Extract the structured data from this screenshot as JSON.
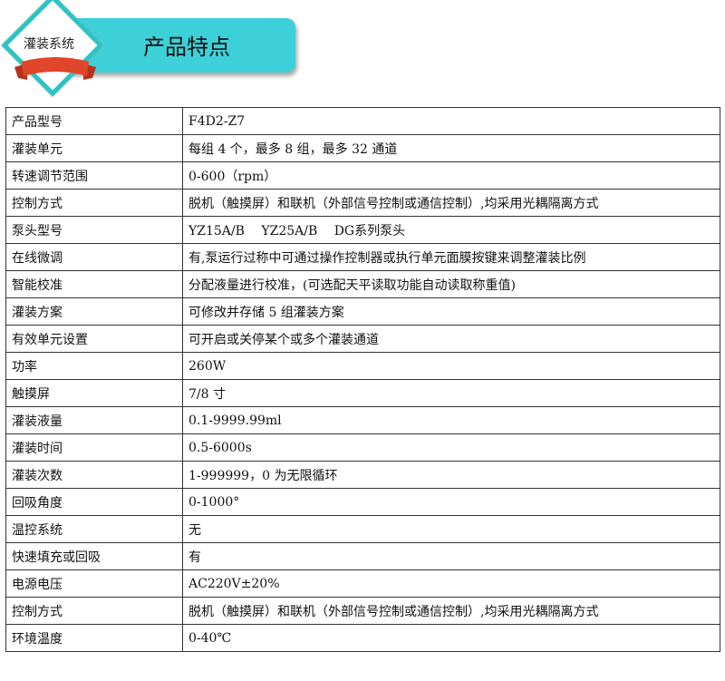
{
  "header": {
    "badge": "灌装系统",
    "title": "产品特点",
    "accent": "#3dd0d8",
    "ribbon": "#e0462a"
  },
  "specs": [
    {
      "k": "产品型号",
      "v": "F4D2-Z7"
    },
    {
      "k": "灌装单元",
      "v": "每组 4 个，最多 8 组，最多 32 通道"
    },
    {
      "k": "转速调节范围",
      "v": "0-600（rpm）"
    },
    {
      "k": "控制方式",
      "v": "脱机（触摸屏）和联机（外部信号控制或通信控制）,均采用光耦隔离方式"
    },
    {
      "k": "泵头型号",
      "v": "YZ15A/B　 YZ25A/B　 DG系列泵头"
    },
    {
      "k": "在线微调",
      "v": "有,泵运行过称中可通过操作控制器或执行单元面膜按键来调整灌装比例"
    },
    {
      "k": "智能校准",
      "v": "分配液量进行校准，(可选配天平读取功能自动读取称重值)"
    },
    {
      "k": "灌装方案",
      "v": "可修改并存储 5 组灌装方案"
    },
    {
      "k": "有效单元设置",
      "v": "可开启或关停某个或多个灌装通道"
    },
    {
      "k": "功率",
      "v": "260W"
    },
    {
      "k": "触摸屏",
      "v": "7/8 寸"
    },
    {
      "k": "灌装液量",
      "v": "0.1-9999.99ml"
    },
    {
      "k": "灌装时间",
      "v": "0.5-6000s"
    },
    {
      "k": "灌装次数",
      "v": "1-999999，0 为无限循环"
    },
    {
      "k": "回吸角度",
      "v": "0-1000°"
    },
    {
      "k": "温控系统",
      "v": "无"
    },
    {
      "k": "快速填充或回吸",
      "v": "有"
    },
    {
      "k": "电源电压",
      "v": "AC220V±20%"
    },
    {
      "k": "控制方式",
      "v": "脱机（触摸屏）和联机（外部信号控制或通信控制）,均采用光耦隔离方式"
    },
    {
      "k": "环境温度",
      "v": "0-40℃"
    }
  ]
}
